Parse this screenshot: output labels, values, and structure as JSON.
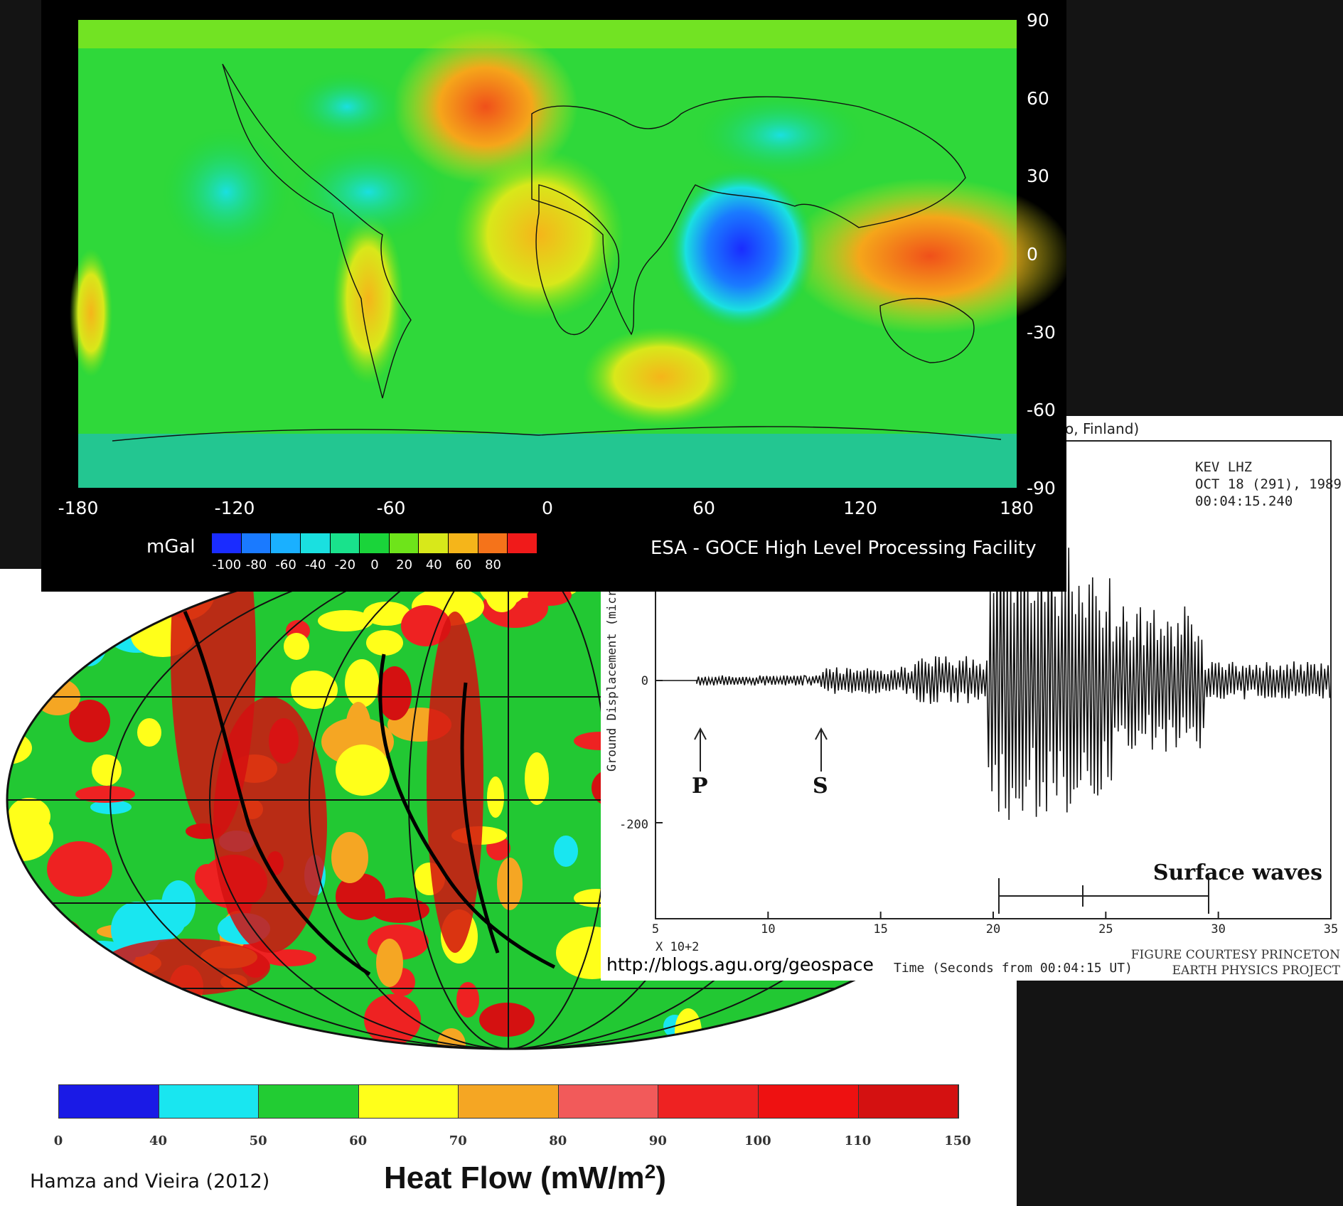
{
  "gravity_map": {
    "y_ticks": [
      "90",
      "60",
      "30",
      "0",
      "-30",
      "-60",
      "-90"
    ],
    "x_ticks": [
      "-180",
      "-120",
      "-60",
      "0",
      "60",
      "120",
      "180"
    ],
    "unit": "mGal",
    "colorbar_ticks": [
      "-100",
      "-80",
      "-60",
      "-40",
      "-20",
      "0",
      "20",
      "40",
      "60",
      "80"
    ],
    "colorbar_colors": [
      "#1a2cff",
      "#1a7aff",
      "#1ab0ff",
      "#1ae0e0",
      "#19e28c",
      "#1ad43a",
      "#6ee41a",
      "#d8e81a",
      "#f5b51a",
      "#f5731a",
      "#f01a1a"
    ],
    "credit": "ESA - GOCE High Level Processing Facility"
  },
  "seismogram": {
    "header_fragment": "o, Finland)",
    "station": "KEV   LHZ",
    "date": "OCT 18 (291), 1989",
    "time": "00:04:15.240",
    "y_axis_label": "Ground Displacement (microns)",
    "y_ticks": [
      "0",
      "-200"
    ],
    "x_ticks": [
      "5",
      "10",
      "15",
      "20",
      "25",
      "30",
      "35"
    ],
    "x_multiplier": "X 10+2",
    "x_axis_label": "Time (Seconds from 00:04:15 UT)",
    "p_label": "P",
    "s_label": "S",
    "surface_label": "Surface waves",
    "url": "http://blogs.agu.org/geospace",
    "courtesy_line1": "FIGURE COURTESY PRINCETON",
    "courtesy_line2": "EARTH PHYSICS PROJECT"
  },
  "heat_flow_map": {
    "colorbar_ticks": [
      "0",
      "40",
      "50",
      "60",
      "70",
      "80",
      "90",
      "100",
      "110",
      "150"
    ],
    "colorbar_colors": [
      "#1a1ae6",
      "#19e6f0",
      "#22cc33",
      "#ffff1a",
      "#f5a623",
      "#f25a5a",
      "#ee2222",
      "#ee1111",
      "#d41111"
    ],
    "credit": "Hamza and Vieira (2012)",
    "title": "Heat Flow (mW/m",
    "title_sup": "2",
    "title_end": ")"
  }
}
